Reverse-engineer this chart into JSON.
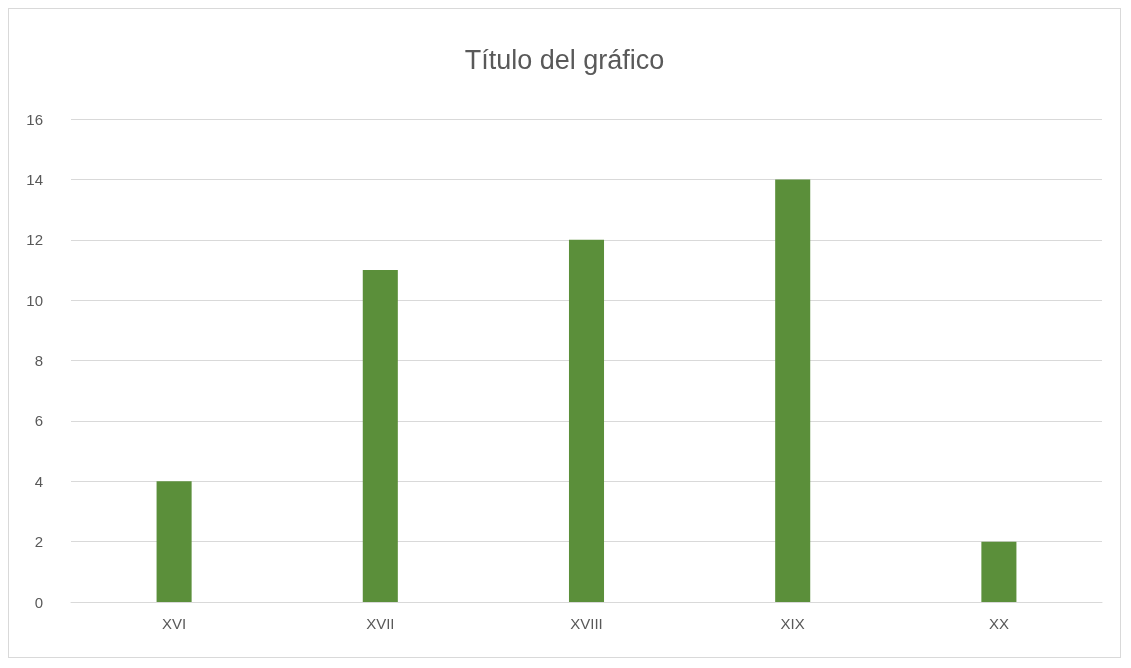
{
  "chart_data": {
    "type": "bar",
    "title": "Título del gráfico",
    "categories": [
      "XVI",
      "XVII",
      "XVIII",
      "XIX",
      "XX"
    ],
    "values": [
      4,
      11,
      12,
      14,
      2
    ],
    "color": "#5b8f3a",
    "ylim": [
      0,
      16
    ],
    "yticks": [
      0,
      2,
      4,
      6,
      8,
      10,
      12,
      14,
      16
    ],
    "grid": "y"
  }
}
